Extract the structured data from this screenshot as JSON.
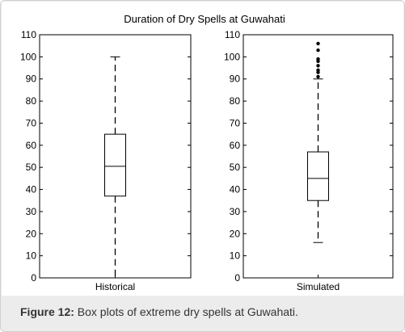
{
  "caption": {
    "label": "Figure 12:",
    "text": " Box plots of extreme dry spells at Guwahati."
  },
  "chart_data": {
    "type": "box",
    "title": "Duration of Dry Spells at Guwahati",
    "ylim": [
      0,
      110
    ],
    "yticks": [
      0,
      10,
      20,
      30,
      40,
      50,
      60,
      70,
      80,
      90,
      100,
      110
    ],
    "grid": false,
    "panels": [
      {
        "category": "Historical",
        "whisker_low": 0,
        "q1": 37,
        "median": 50.5,
        "q3": 65,
        "whisker_high": 100,
        "outliers": []
      },
      {
        "category": "Simulated",
        "whisker_low": 16,
        "q1": 35,
        "median": 45,
        "q3": 57,
        "whisker_high": 90,
        "outliers": [
          91,
          93,
          94,
          96,
          98,
          99,
          103,
          106
        ]
      }
    ]
  }
}
